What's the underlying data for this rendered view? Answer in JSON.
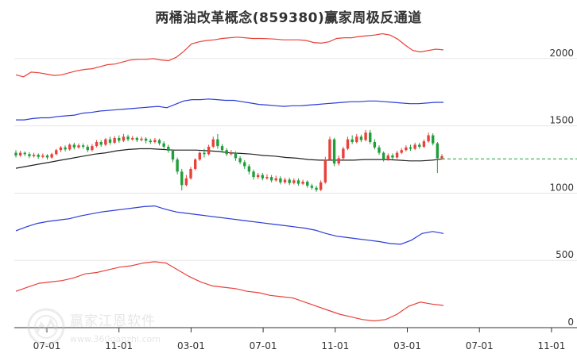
{
  "chart_data": {
    "type": "candlestick-channel",
    "title": "两桶油改革概念(859380)赢家周极反通道",
    "ylim": [
      0,
      2200
    ],
    "yticks": [
      0,
      500,
      1000,
      1500,
      2000
    ],
    "xticks": [
      "07-01",
      "11-01",
      "03-01",
      "07-01",
      "11-01",
      "03-01",
      "07-01",
      "11-01"
    ],
    "grid": true,
    "reference_line_value": 1255,
    "candles": [
      [
        1300,
        1280,
        1320,
        1265
      ],
      [
        1280,
        1300,
        1315,
        1270
      ],
      [
        1300,
        1290,
        1310,
        1275
      ],
      [
        1290,
        1275,
        1305,
        1260
      ],
      [
        1275,
        1285,
        1300,
        1265
      ],
      [
        1285,
        1270,
        1295,
        1255
      ],
      [
        1270,
        1280,
        1295,
        1260
      ],
      [
        1280,
        1265,
        1290,
        1250
      ],
      [
        1265,
        1290,
        1300,
        1255
      ],
      [
        1290,
        1320,
        1330,
        1280
      ],
      [
        1320,
        1340,
        1350,
        1305
      ],
      [
        1340,
        1325,
        1355,
        1310
      ],
      [
        1325,
        1360,
        1370,
        1315
      ],
      [
        1360,
        1340,
        1375,
        1325
      ],
      [
        1340,
        1355,
        1370,
        1330
      ],
      [
        1355,
        1345,
        1370,
        1330
      ],
      [
        1345,
        1320,
        1360,
        1305
      ],
      [
        1320,
        1350,
        1365,
        1310
      ],
      [
        1350,
        1380,
        1395,
        1340
      ],
      [
        1380,
        1360,
        1395,
        1345
      ],
      [
        1360,
        1400,
        1410,
        1350
      ],
      [
        1400,
        1375,
        1420,
        1360
      ],
      [
        1375,
        1410,
        1425,
        1365
      ],
      [
        1410,
        1390,
        1430,
        1375
      ],
      [
        1390,
        1420,
        1440,
        1380
      ],
      [
        1420,
        1400,
        1435,
        1385
      ],
      [
        1400,
        1410,
        1425,
        1390
      ],
      [
        1410,
        1395,
        1420,
        1380
      ],
      [
        1395,
        1405,
        1420,
        1385
      ],
      [
        1405,
        1390,
        1415,
        1370
      ],
      [
        1390,
        1380,
        1405,
        1365
      ],
      [
        1380,
        1395,
        1410,
        1370
      ],
      [
        1395,
        1370,
        1405,
        1355
      ],
      [
        1370,
        1345,
        1385,
        1330
      ],
      [
        1345,
        1315,
        1360,
        1300
      ],
      [
        1315,
        1250,
        1325,
        1230
      ],
      [
        1250,
        1160,
        1265,
        1140
      ],
      [
        1160,
        1060,
        1180,
        1020
      ],
      [
        1060,
        1110,
        1135,
        1050
      ],
      [
        1110,
        1180,
        1195,
        1100
      ],
      [
        1180,
        1250,
        1260,
        1170
      ],
      [
        1250,
        1300,
        1310,
        1240
      ],
      [
        1300,
        1290,
        1330,
        1265
      ],
      [
        1290,
        1345,
        1360,
        1280
      ],
      [
        1345,
        1400,
        1420,
        1335
      ],
      [
        1400,
        1350,
        1440,
        1330
      ],
      [
        1350,
        1320,
        1365,
        1300
      ],
      [
        1320,
        1290,
        1335,
        1275
      ],
      [
        1290,
        1300,
        1320,
        1280
      ],
      [
        1300,
        1260,
        1310,
        1240
      ],
      [
        1260,
        1230,
        1275,
        1215
      ],
      [
        1230,
        1200,
        1245,
        1180
      ],
      [
        1200,
        1160,
        1215,
        1140
      ],
      [
        1160,
        1120,
        1175,
        1100
      ],
      [
        1120,
        1135,
        1150,
        1105
      ],
      [
        1135,
        1110,
        1150,
        1095
      ],
      [
        1110,
        1120,
        1140,
        1100
      ],
      [
        1120,
        1095,
        1135,
        1080
      ],
      [
        1095,
        1110,
        1130,
        1085
      ],
      [
        1110,
        1080,
        1125,
        1065
      ],
      [
        1080,
        1100,
        1115,
        1070
      ],
      [
        1100,
        1075,
        1115,
        1060
      ],
      [
        1075,
        1095,
        1110,
        1065
      ],
      [
        1095,
        1070,
        1110,
        1055
      ],
      [
        1070,
        1085,
        1100,
        1060
      ],
      [
        1085,
        1055,
        1095,
        1040
      ],
      [
        1055,
        1040,
        1070,
        1025
      ],
      [
        1040,
        1025,
        1055,
        1010
      ],
      [
        1025,
        1080,
        1095,
        1015
      ],
      [
        1080,
        1250,
        1270,
        1070
      ],
      [
        1250,
        1400,
        1420,
        1240
      ],
      [
        1400,
        1220,
        1410,
        1200
      ],
      [
        1220,
        1260,
        1280,
        1205
      ],
      [
        1260,
        1330,
        1345,
        1250
      ],
      [
        1330,
        1400,
        1420,
        1320
      ],
      [
        1400,
        1380,
        1430,
        1365
      ],
      [
        1380,
        1420,
        1440,
        1370
      ],
      [
        1420,
        1395,
        1435,
        1380
      ],
      [
        1395,
        1450,
        1470,
        1385
      ],
      [
        1450,
        1380,
        1470,
        1365
      ],
      [
        1380,
        1340,
        1400,
        1325
      ],
      [
        1340,
        1300,
        1355,
        1285
      ],
      [
        1300,
        1250,
        1310,
        1235
      ],
      [
        1250,
        1280,
        1295,
        1240
      ],
      [
        1280,
        1265,
        1295,
        1250
      ],
      [
        1265,
        1300,
        1315,
        1255
      ],
      [
        1300,
        1320,
        1335,
        1290
      ],
      [
        1320,
        1340,
        1355,
        1310
      ],
      [
        1340,
        1330,
        1360,
        1315
      ],
      [
        1330,
        1360,
        1375,
        1320
      ],
      [
        1360,
        1345,
        1375,
        1330
      ],
      [
        1345,
        1385,
        1400,
        1335
      ],
      [
        1385,
        1430,
        1450,
        1375
      ],
      [
        1430,
        1370,
        1445,
        1355
      ],
      [
        1370,
        1260,
        1380,
        1150
      ],
      [
        1260,
        1275,
        1290,
        1250
      ]
    ],
    "series": [
      {
        "name": "",
        "color": "#e8413a",
        "values": [
          1880,
          1865,
          1900,
          1895,
          1885,
          1875,
          1880,
          1895,
          1910,
          1920,
          1925,
          1940,
          1955,
          1960,
          1975,
          1990,
          1995,
          1995,
          2000,
          1990,
          1985,
          2010,
          2055,
          2110,
          2125,
          2135,
          2140,
          2150,
          2155,
          2160,
          2155,
          2150,
          2150,
          2148,
          2145,
          2140,
          2140,
          2140,
          2135,
          2120,
          2115,
          2125,
          2150,
          2155,
          2155,
          2165,
          2170,
          2175,
          2185,
          2175,
          2145,
          2100,
          2060,
          2050,
          2060,
          2070,
          2065
        ]
      },
      {
        "name": "",
        "color": "#2b3bd8",
        "values": [
          1545,
          1545,
          1555,
          1560,
          1560,
          1570,
          1575,
          1580,
          1595,
          1600,
          1610,
          1615,
          1620,
          1625,
          1630,
          1635,
          1640,
          1645,
          1635,
          1660,
          1685,
          1695,
          1695,
          1700,
          1695,
          1690,
          1690,
          1680,
          1670,
          1660,
          1655,
          1650,
          1645,
          1650,
          1650,
          1655,
          1660,
          1665,
          1670,
          1675,
          1680,
          1680,
          1685,
          1685,
          1680,
          1675,
          1670,
          1665,
          1665,
          1670,
          1675,
          1675
        ]
      },
      {
        "name": "",
        "color": "#222222",
        "values": [
          1185,
          1200,
          1215,
          1230,
          1245,
          1260,
          1275,
          1290,
          1300,
          1315,
          1325,
          1330,
          1330,
          1325,
          1320,
          1320,
          1320,
          1315,
          1310,
          1300,
          1295,
          1290,
          1280,
          1275,
          1265,
          1260,
          1250,
          1245,
          1245,
          1245,
          1245,
          1250,
          1250,
          1250,
          1245,
          1240,
          1240,
          1245,
          1255
        ]
      },
      {
        "name": "",
        "color": "#2b3bd8",
        "values": [
          720,
          750,
          775,
          790,
          800,
          810,
          830,
          845,
          860,
          870,
          880,
          890,
          900,
          905,
          880,
          860,
          850,
          840,
          830,
          820,
          810,
          800,
          790,
          780,
          770,
          760,
          750,
          740,
          725,
          700,
          680,
          670,
          660,
          650,
          640,
          625,
          620,
          650,
          700,
          715,
          700
        ]
      },
      {
        "name": "",
        "color": "#e8413a",
        "values": [
          270,
          300,
          330,
          340,
          350,
          370,
          400,
          410,
          430,
          450,
          460,
          480,
          490,
          480,
          430,
          380,
          340,
          310,
          300,
          290,
          270,
          260,
          240,
          230,
          220,
          190,
          160,
          130,
          100,
          80,
          60,
          50,
          60,
          100,
          160,
          190,
          175,
          165
        ]
      }
    ]
  },
  "watermark": {
    "text": "赢家江恩软件",
    "url": "www.360ganzhi.com"
  }
}
